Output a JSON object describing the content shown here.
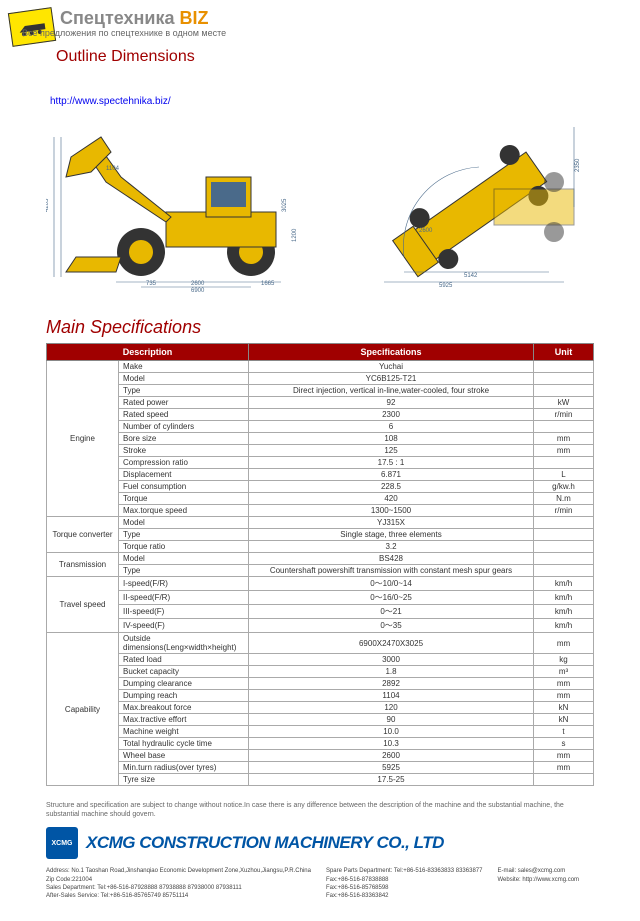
{
  "header": {
    "brand_gray": "Спецтехника",
    "brand_orange": "BIZ",
    "subtitle": "Все предложения по спецтехнике в одном месте",
    "url": "http://www.spectehnika.biz/",
    "outline_title": "Outline Dimensions",
    "main_spec_title": "Main Specifications"
  },
  "table": {
    "headers": {
      "desc": "Description",
      "spec": "Specifications",
      "unit": "Unit"
    },
    "groups": [
      {
        "cat": "Engine",
        "rows": [
          [
            "Make",
            "Yuchai",
            ""
          ],
          [
            "Model",
            "YC6B125-T21",
            ""
          ],
          [
            "Type",
            "Direct injection, vertical in-line,water-cooled, four stroke",
            ""
          ],
          [
            "Rated power",
            "92",
            "kW"
          ],
          [
            "Rated speed",
            "2300",
            "r/min"
          ],
          [
            "Number of cylinders",
            "6",
            ""
          ],
          [
            "Bore size",
            "108",
            "mm"
          ],
          [
            "Stroke",
            "125",
            "mm"
          ],
          [
            "Compression ratio",
            "17.5 : 1",
            ""
          ],
          [
            "Displacement",
            "6.871",
            "L"
          ],
          [
            "Fuel consumption",
            "228.5",
            "g/kw.h"
          ],
          [
            "Torque",
            "420",
            "N.m"
          ],
          [
            "Max.torque speed",
            "1300~1500",
            "r/min"
          ]
        ]
      },
      {
        "cat": "Torque converter",
        "rows": [
          [
            "Model",
            "YJ315X",
            ""
          ],
          [
            "Type",
            "Single stage, three elements",
            ""
          ],
          [
            "Torque ratio",
            "3.2",
            ""
          ]
        ]
      },
      {
        "cat": "Transmission",
        "rows": [
          [
            "Model",
            "BS428",
            ""
          ],
          [
            "Type",
            "Countershaft powershift transmission with constant mesh spur gears",
            ""
          ]
        ]
      },
      {
        "cat": "Travel speed",
        "rows": [
          [
            "I-speed(F/R)",
            "0～10/0~14",
            "km/h"
          ],
          [
            "II-speed(F/R)",
            "0～16/0~25",
            "km/h"
          ],
          [
            "III-speed(F)",
            "0～21",
            "km/h"
          ],
          [
            "IV-speed(F)",
            "0～35",
            "km/h"
          ]
        ]
      },
      {
        "cat": "Capability",
        "rows": [
          [
            "Outside dimensions(Leng×width×height)",
            "6900X2470X3025",
            "mm"
          ],
          [
            "Rated load",
            "3000",
            "kg"
          ],
          [
            "Bucket capacity",
            "1.8",
            "m³"
          ],
          [
            "Dumping clearance",
            "2892",
            "mm"
          ],
          [
            "Dumping reach",
            "1104",
            "mm"
          ],
          [
            "Max.breakout force",
            "120",
            "kN"
          ],
          [
            "Max.tractive effort",
            "90",
            "kN"
          ],
          [
            "Machine weight",
            "10.0",
            "t"
          ],
          [
            "Total hydraulic cycle time",
            "10.3",
            "s"
          ],
          [
            "Wheel base",
            "2600",
            "mm"
          ],
          [
            "Min.turn radius(over tyres)",
            "5925",
            "mm"
          ],
          [
            "Tyre size",
            "17.5-25",
            ""
          ]
        ]
      }
    ]
  },
  "disclaimer": "Structure and specification are subject to change without notice.In case there is any difference between the description of the machine and the substantial machine, the substantial machine should govern.",
  "company": {
    "name": "XCMG CONSTRUCTION MACHINERY CO., LTD",
    "contact_left": "Address: No.1 Taoshan Road,Jinshanqiao Economic Development Zone,Xuzhou,Jiangsu,P.R.China\nZip Code:221004\nSales Department: Tel:+86-516-87928888 87938888 87938000 87938111\nAfter-Sales Service: Tel:+86-516-85765749 85751114",
    "contact_mid": "Spare Parts Department: Tel:+86-516-83363833 83363877\nFax:+86-516-87838888\nFax:+86-516-85768598\nFax:+86-516-83363842",
    "contact_right": "E-mail: sales@xcmg.com\nWebsite: http://www.xcmg.com"
  },
  "colors": {
    "header_red": "#a00000",
    "company_blue": "#0055a5",
    "vehicle_yellow": "#e8b800"
  }
}
